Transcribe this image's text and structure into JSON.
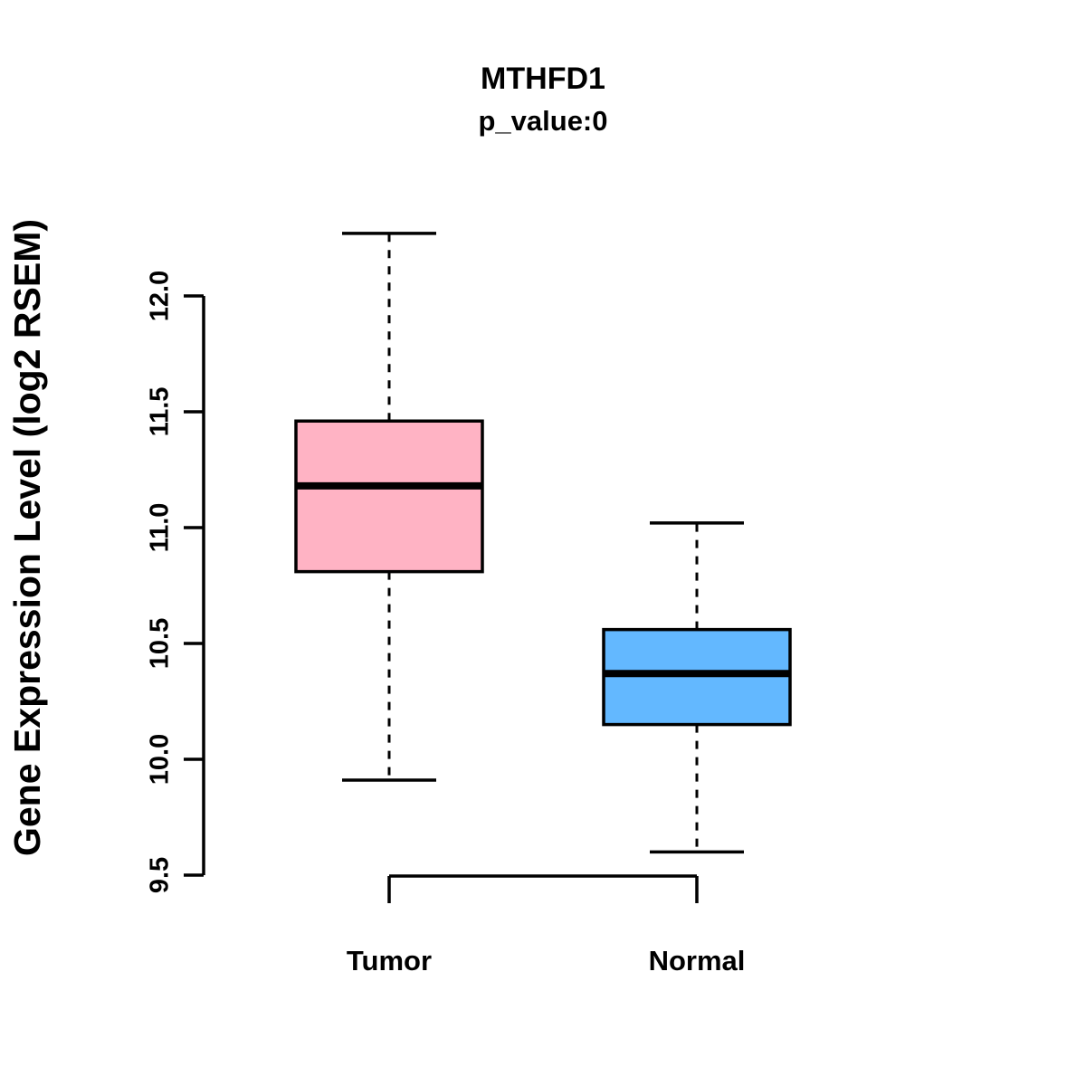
{
  "title": "MTHFD1",
  "subtitle": "p_value:0",
  "y_axis_label": "Gene Expression Level (log2 RSEM)",
  "chart_data": {
    "type": "boxplot",
    "title": "MTHFD1",
    "subtitle": "p_value:0",
    "xlabel": "",
    "ylabel": "Gene Expression Level (log2 RSEM)",
    "ylim": [
      9.5,
      12.0
    ],
    "yticks": [
      9.5,
      10.0,
      10.5,
      11.0,
      11.5,
      12.0
    ],
    "grid": false,
    "legend": "none",
    "groups": [
      {
        "label": "Tumor",
        "color": "#FFB3C4",
        "lower_whisker": 9.91,
        "q1": 10.81,
        "median": 11.18,
        "q3": 11.46,
        "upper_whisker": 12.27
      },
      {
        "label": "Normal",
        "color": "#63B8FF",
        "lower_whisker": 9.6,
        "q1": 10.15,
        "median": 10.37,
        "q3": 10.56,
        "upper_whisker": 11.02
      }
    ]
  }
}
